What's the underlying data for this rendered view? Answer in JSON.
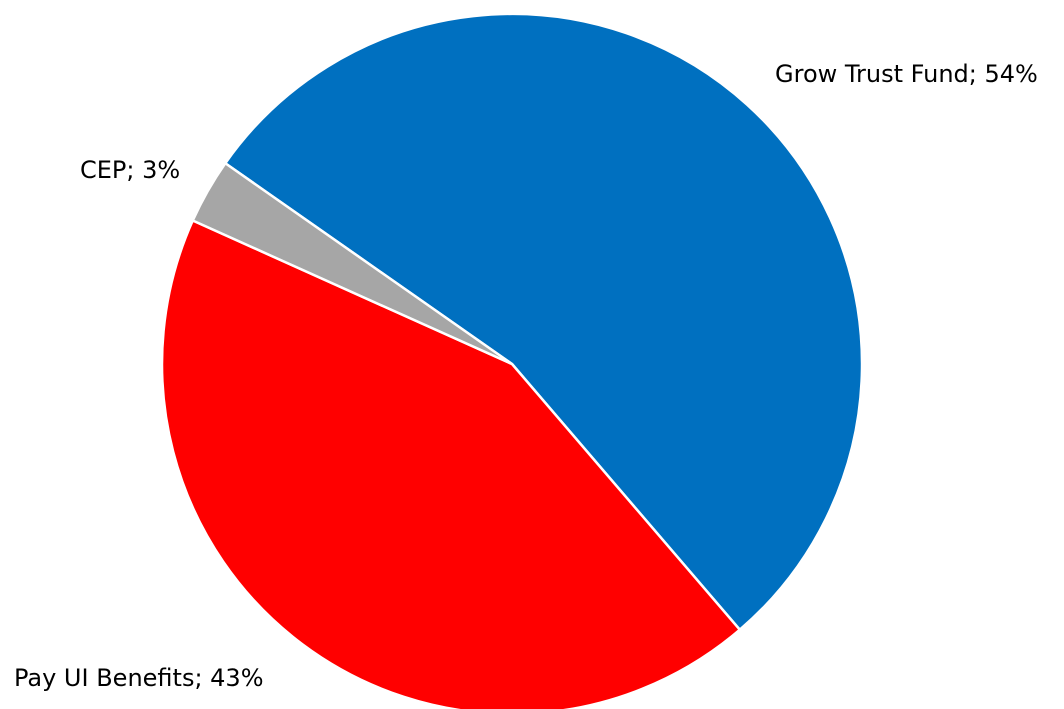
{
  "chart_data": {
    "type": "pie",
    "slices": [
      {
        "label": "Grow Trust Fund",
        "value": 54,
        "color": "#0070C0",
        "data_label": "Grow Trust Fund; 54%"
      },
      {
        "label": "Pay UI Benefits",
        "value": 43,
        "color": "#FF0000",
        "data_label": "Pay UI Benefits; 43%"
      },
      {
        "label": "CEP",
        "value": 3,
        "color": "#A6A6A6",
        "data_label": "CEP; 3%"
      }
    ],
    "title": "",
    "legend": "none",
    "start_angle_deg": -55,
    "direction": "clockwise"
  }
}
